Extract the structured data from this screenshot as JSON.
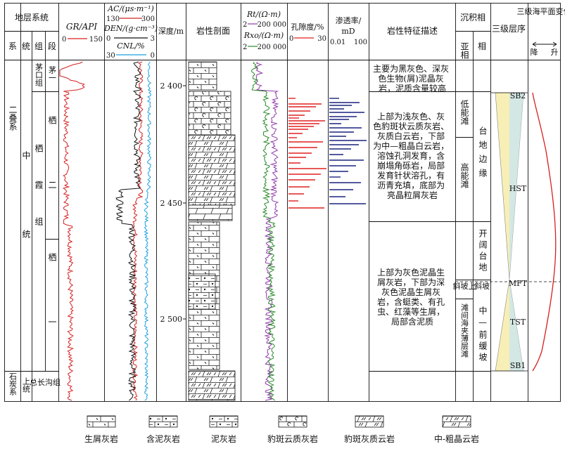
{
  "headers": {
    "strat_system": "地层系统",
    "system": "系",
    "series": "统",
    "group": "组",
    "segment": "段",
    "gr": "GR/API",
    "gr_min": "0",
    "gr_max": "150",
    "ac": "AC/(μs·m⁻¹)",
    "ac_min": "130",
    "ac_max": "300",
    "den": "DEN/(g·cm⁻³)",
    "den_min": "0",
    "den_max": "3",
    "cnl": "CNL/%",
    "cnl_min": "30",
    "cnl_max": "0",
    "depth": "深度/m",
    "lith_profile": "岩性剖面",
    "rt": "Rt/(Ω·m)",
    "rt_min": "2",
    "rt_max": "200 000",
    "rxo": "Rxo/(Ω·m)",
    "rxo_min": "2",
    "rxo_max": "200 000",
    "porosity": "孔隙度/%",
    "por_min": "0",
    "por_max": "30",
    "perm": "渗透率/",
    "perm_unit": "mD",
    "perm_min": "0.01",
    "perm_max": "100",
    "lith_desc": "岩性特征描述",
    "facies": "沉积相",
    "subfacies": "亚相",
    "facies_col": "相",
    "sequence": "三级层序",
    "sealevel": "三级海平面变化",
    "fall": "降",
    "rise": "升"
  },
  "strat": {
    "system_permian": "二叠系",
    "system_carb": "石炭系",
    "series_middle": "中统",
    "series_upper": "上统",
    "group_maokou": "茅口组",
    "group_qixia": "栖霞组",
    "group_zongchanggou": "总长沟组",
    "seg_mao1": "茅一",
    "seg_qi2": "栖二",
    "seg_qi1": "栖一"
  },
  "depths": [
    "2 400",
    "2 450",
    "2 500"
  ],
  "descriptions": {
    "d1": [
      "主要为黑灰色、深灰",
      "色生物(屑)泥晶灰",
      "岩，泥质含量较高"
    ],
    "d2": [
      "上部为浅灰色、灰",
      "色豹斑状云质灰岩、",
      "灰质白云岩，下部",
      "为中—粗晶白云岩，",
      "溶蚀孔洞发育，含",
      "崩塌角砾岩，局部",
      "发育针状溶孔，有",
      "沥青充填，底部为",
      "亮晶粒屑灰岩"
    ],
    "d3": [
      "上部为灰色泥晶生",
      "屑灰岩，下部为深",
      "灰色泥晶生屑灰",
      "岩，含蜓类、有孔",
      "虫、红藻等生屑，",
      "局部含泥质"
    ]
  },
  "facies": {
    "low_shoal": "低能滩",
    "high_shoal": "高能滩",
    "platform_margin": "台地边缘",
    "open_platform": "开阔台地",
    "slope_upper": "斜坡上",
    "slope": "斜坡",
    "interbank": "滩间海夹薄层滩",
    "mid_ramp": "中—前缓坡"
  },
  "sequence": {
    "sb2": "SB2",
    "hst": "HST",
    "mft": "MFT",
    "tst": "TST",
    "sb1": "SB1"
  },
  "legend": [
    {
      "key": "bioclastic",
      "label": "生屑灰岩"
    },
    {
      "key": "muddy",
      "label": "含泥灰岩"
    },
    {
      "key": "marl",
      "label": "泥灰岩"
    },
    {
      "key": "leopard_dol",
      "label": "豹斑云质灰岩"
    },
    {
      "key": "leopard_calc",
      "label": "豹斑灰质云岩"
    },
    {
      "key": "coarse_dol",
      "label": "中-粗晶云岩"
    }
  ],
  "colors": {
    "gr": "#d62020",
    "ac": "#d62020",
    "den": "#111111",
    "cnl": "#1aa0e0",
    "rt": "#8e3aa8",
    "rxo": "#2a8a2a",
    "porosity": "#e02020",
    "perm": "#1a237e",
    "sealevel": "#d62020",
    "seq_fill": "#f7efb5",
    "seq_fill2": "#c9e6f0"
  }
}
